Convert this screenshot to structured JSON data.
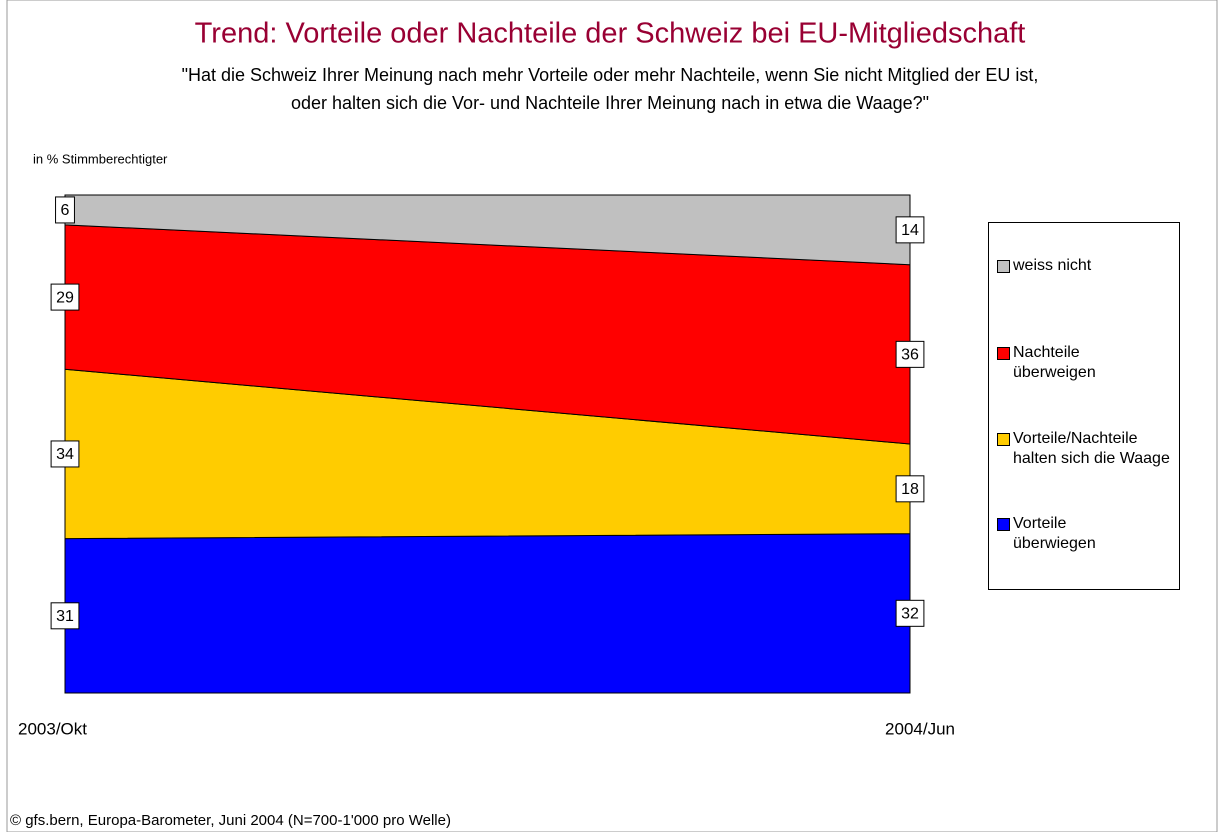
{
  "chart_data": {
    "type": "stacked-area",
    "title": "Trend: Vorteile oder Nachteile der Schweiz bei EU-Mitgliedschaft",
    "subtitle": [
      "\"Hat die Schweiz Ihrer Meinung nach mehr Vorteile oder mehr Nachteile, wenn Sie nicht Mitglied der EU ist,",
      "oder halten sich die Vor- und Nachteile Ihrer Meinung nach in etwa die Waage?\""
    ],
    "y_label": "in % Stimmberechtigter",
    "source": "© gfs.bern, Europa-Barometer, Juni 2004 (N=700-1'000 pro Welle)",
    "categories": [
      "2003/Okt",
      "2004/Jun"
    ],
    "series": [
      {
        "name": "Vorteile überwiegen",
        "color": "#0000ff",
        "values": [
          31,
          32
        ]
      },
      {
        "name": "Vorteile/Nachteile halten sich die Waage",
        "color": "#ffcc00",
        "values": [
          34,
          18
        ]
      },
      {
        "name": "Nachteile überweigen",
        "color": "#ff0000",
        "values": [
          29,
          36
        ]
      },
      {
        "name": "weiss nicht",
        "color": "#c0c0c0",
        "values": [
          6,
          14
        ]
      }
    ],
    "legend": "right"
  }
}
